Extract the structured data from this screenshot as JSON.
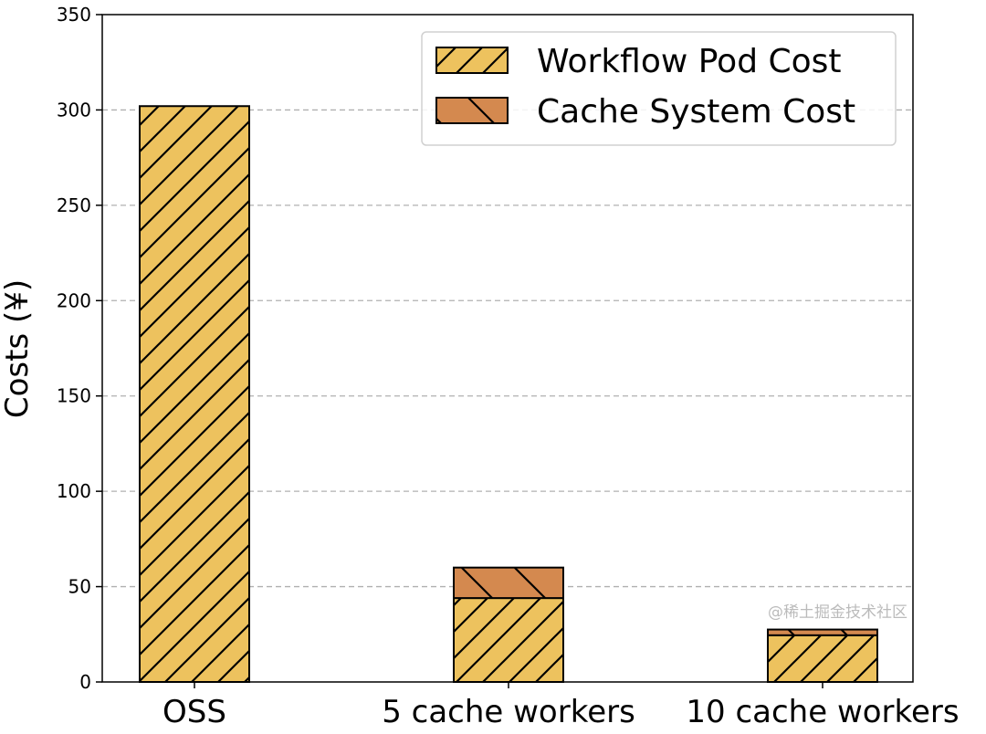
{
  "chart_data": {
    "type": "bar",
    "stacked": true,
    "title": "",
    "xlabel": "",
    "ylabel": "Costs (¥)",
    "categories": [
      "OSS",
      "5 cache workers",
      "10 cache workers"
    ],
    "series": [
      {
        "name": "Workflow Pod Cost",
        "values": [
          302,
          44,
          24.5
        ],
        "color": "#EDC25E",
        "hatch": "//"
      },
      {
        "name": "Cache System Cost",
        "values": [
          0,
          16,
          3
        ],
        "color": "#D4894F",
        "hatch": "\\"
      }
    ],
    "ylim": [
      0,
      350
    ],
    "yticks": [
      0,
      50,
      100,
      150,
      200,
      250,
      300,
      350
    ],
    "grid": "y-dashed",
    "legend_position": "top-right"
  },
  "watermark": "@稀土掘金技术社区"
}
